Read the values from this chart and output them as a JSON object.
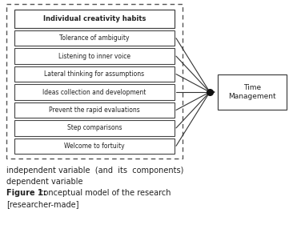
{
  "title_box": "Individual creativity habits",
  "sub_boxes": [
    "Tolerance of ambiguity",
    "Listening to inner voice",
    "Lateral thinking for assumptions",
    "Ideas collection and development",
    "Prevent the rapid evaluations",
    "Step comparisons",
    "Welcome to fortuity"
  ],
  "right_box": "Time\nManagement",
  "caption_line1": "independent variable  (and  its  components)",
  "caption_line2": "dependent variable",
  "caption_bold": "Figure 1:",
  "caption_rest": " conceptual model of the research",
  "caption_researcher": "[researcher-made]",
  "bg_color": "#ffffff",
  "box_color": "#ffffff",
  "box_edge_color": "#444444",
  "dashed_border_color": "#555555",
  "arrow_color": "#333333",
  "dot_color": "#111111",
  "text_color": "#222222",
  "font_size_title": 6.0,
  "font_size_sub": 5.5,
  "font_size_right": 6.5,
  "font_size_caption": 7.0
}
